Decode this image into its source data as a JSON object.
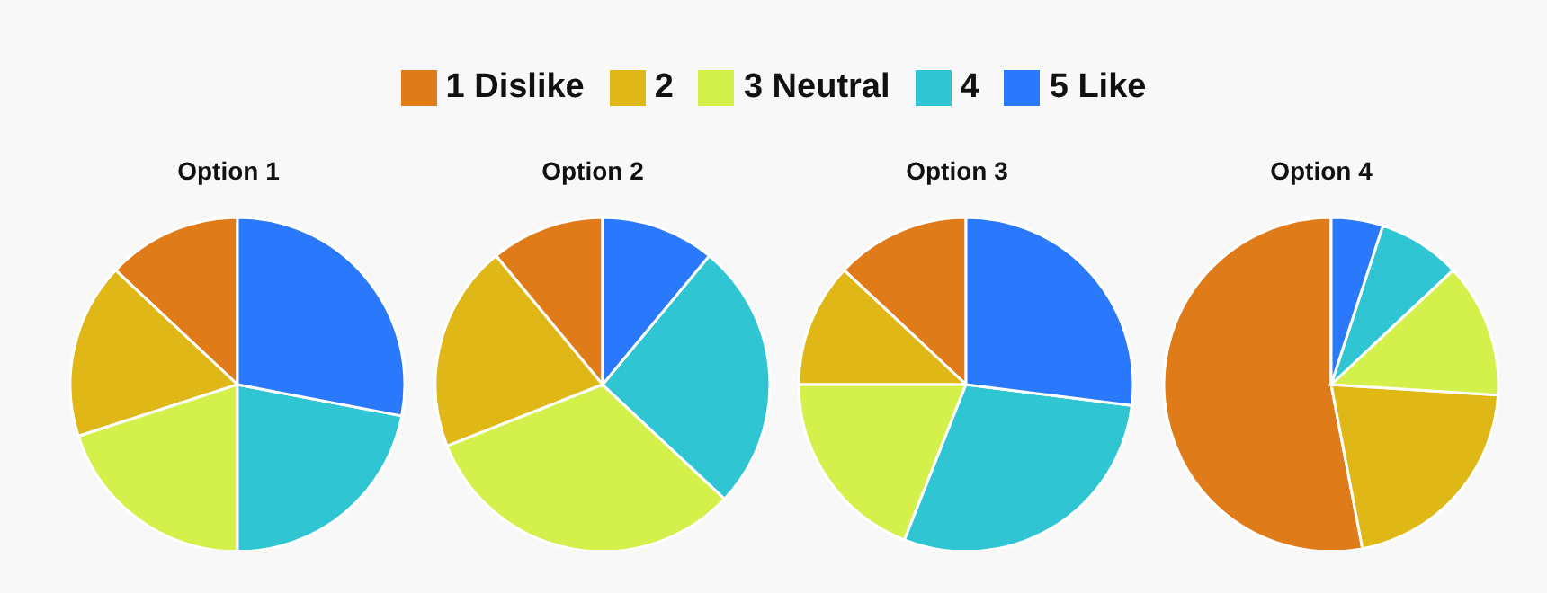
{
  "chart_data": [
    {
      "type": "pie",
      "title": "Option 1",
      "legend": "top",
      "categories": [
        "1 Dislike",
        "2",
        "3 Neutral",
        "4",
        "5 Like"
      ],
      "values": [
        13,
        17,
        20,
        22,
        28
      ],
      "colors": [
        "#e07b1a",
        "#dfb817",
        "#d4f04a",
        "#30c5d2",
        "#2a78fc"
      ]
    },
    {
      "type": "pie",
      "title": "Option 2",
      "categories": [
        null,
        null,
        null,
        null,
        null
      ],
      "values": [
        11,
        20,
        32,
        26,
        11
      ],
      "colors": [
        "#e07b1a",
        "#dfb817",
        "#d4f04a",
        "#30c5d2",
        "#2a78fc"
      ]
    },
    {
      "type": "pie",
      "title": "Option 3",
      "categories": [
        null,
        null,
        null,
        null,
        null
      ],
      "values": [
        13,
        12,
        19,
        29,
        27
      ],
      "colors": [
        "#e07b1a",
        "#dfb817",
        "#d4f04a",
        "#30c5d2",
        "#2a78fc"
      ]
    },
    {
      "type": "pie",
      "title": "Option 4",
      "categories": [
        null,
        null,
        null,
        null,
        null
      ],
      "values": [
        53,
        21,
        13,
        8,
        5
      ],
      "colors": [
        "#e07b1a",
        "#dfb817",
        "#d4f04a",
        "#30c5d2",
        "#2a78fc"
      ]
    }
  ]
}
